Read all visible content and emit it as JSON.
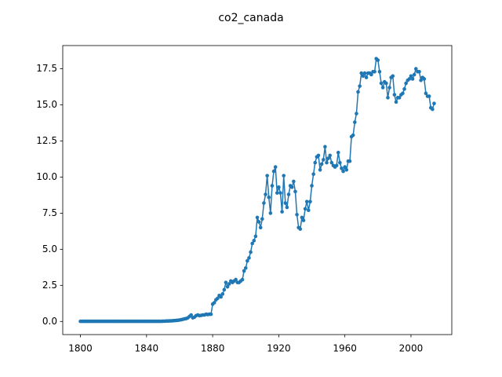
{
  "chart_data": {
    "type": "line",
    "title": "co2_canada",
    "color": "#1f77b4",
    "markers": true,
    "grid": false,
    "x": [
      1800,
      1801,
      1802,
      1803,
      1804,
      1805,
      1806,
      1807,
      1808,
      1809,
      1810,
      1811,
      1812,
      1813,
      1814,
      1815,
      1816,
      1817,
      1818,
      1819,
      1820,
      1821,
      1822,
      1823,
      1824,
      1825,
      1826,
      1827,
      1828,
      1829,
      1830,
      1831,
      1832,
      1833,
      1834,
      1835,
      1836,
      1837,
      1838,
      1839,
      1840,
      1841,
      1842,
      1843,
      1844,
      1845,
      1846,
      1847,
      1848,
      1849,
      1850,
      1851,
      1852,
      1853,
      1854,
      1855,
      1856,
      1857,
      1858,
      1859,
      1860,
      1861,
      1862,
      1863,
      1864,
      1865,
      1866,
      1867,
      1868,
      1869,
      1870,
      1871,
      1872,
      1873,
      1874,
      1875,
      1876,
      1877,
      1878,
      1879,
      1880,
      1881,
      1882,
      1883,
      1884,
      1885,
      1886,
      1887,
      1888,
      1889,
      1890,
      1891,
      1892,
      1893,
      1894,
      1895,
      1896,
      1897,
      1898,
      1899,
      1900,
      1901,
      1902,
      1903,
      1904,
      1905,
      1906,
      1907,
      1908,
      1909,
      1910,
      1911,
      1912,
      1913,
      1914,
      1915,
      1916,
      1917,
      1918,
      1919,
      1920,
      1921,
      1922,
      1923,
      1924,
      1925,
      1926,
      1927,
      1928,
      1929,
      1930,
      1931,
      1932,
      1933,
      1934,
      1935,
      1936,
      1937,
      1938,
      1939,
      1940,
      1941,
      1942,
      1943,
      1944,
      1945,
      1946,
      1947,
      1948,
      1949,
      1950,
      1951,
      1952,
      1953,
      1954,
      1955,
      1956,
      1957,
      1958,
      1959,
      1960,
      1961,
      1962,
      1963,
      1964,
      1965,
      1966,
      1967,
      1968,
      1969,
      1970,
      1971,
      1972,
      1973,
      1974,
      1975,
      1976,
      1977,
      1978,
      1979,
      1980,
      1981,
      1982,
      1983,
      1984,
      1985,
      1986,
      1987,
      1988,
      1989,
      1990,
      1991,
      1992,
      1993,
      1994,
      1995,
      1996,
      1997,
      1998,
      1999,
      2000,
      2001,
      2002,
      2003,
      2004,
      2005,
      2006,
      2007,
      2008,
      2009,
      2010,
      2011,
      2012,
      2013,
      2014
    ],
    "values": [
      0.01,
      0.01,
      0.01,
      0.01,
      0.01,
      0.01,
      0.01,
      0.01,
      0.01,
      0.01,
      0.01,
      0.01,
      0.01,
      0.01,
      0.01,
      0.01,
      0.01,
      0.01,
      0.01,
      0.01,
      0.01,
      0.01,
      0.01,
      0.01,
      0.01,
      0.01,
      0.01,
      0.01,
      0.01,
      0.01,
      0.01,
      0.01,
      0.01,
      0.01,
      0.01,
      0.01,
      0.01,
      0.01,
      0.01,
      0.01,
      0.01,
      0.01,
      0.01,
      0.01,
      0.01,
      0.01,
      0.01,
      0.01,
      0.01,
      0.01,
      0.02,
      0.02,
      0.03,
      0.03,
      0.04,
      0.04,
      0.05,
      0.06,
      0.07,
      0.08,
      0.1,
      0.12,
      0.15,
      0.18,
      0.2,
      0.25,
      0.35,
      0.45,
      0.25,
      0.3,
      0.4,
      0.45,
      0.4,
      0.42,
      0.45,
      0.45,
      0.5,
      0.48,
      0.5,
      0.5,
      1.2,
      1.3,
      1.5,
      1.6,
      1.8,
      1.7,
      1.9,
      2.2,
      2.7,
      2.4,
      2.6,
      2.8,
      2.7,
      2.8,
      2.9,
      2.7,
      2.7,
      2.8,
      2.9,
      3.5,
      3.7,
      4.2,
      4.4,
      4.8,
      5.4,
      5.6,
      5.9,
      7.2,
      6.9,
      6.5,
      7.1,
      8.2,
      8.8,
      10.1,
      8.6,
      7.5,
      9.4,
      10.4,
      10.7,
      8.9,
      9.3,
      8.9,
      7.6,
      10.1,
      8.2,
      7.9,
      8.8,
      9.4,
      9.3,
      9.7,
      9.0,
      7.4,
      6.5,
      6.4,
      7.2,
      7.0,
      7.8,
      8.3,
      7.7,
      8.3,
      9.4,
      10.2,
      11.0,
      11.4,
      11.5,
      10.5,
      10.9,
      11.2,
      12.1,
      11.0,
      11.3,
      11.5,
      11.0,
      10.8,
      10.7,
      10.8,
      11.7,
      11.0,
      10.6,
      10.4,
      10.7,
      10.5,
      11.1,
      11.1,
      12.8,
      12.9,
      13.8,
      14.4,
      15.9,
      16.3,
      17.2,
      17.0,
      17.2,
      16.9,
      17.2,
      17.2,
      17.1,
      17.3,
      17.3,
      18.2,
      18.1,
      17.3,
      16.5,
      16.2,
      16.6,
      16.5,
      15.5,
      16.2,
      16.9,
      17.0,
      15.7,
      15.2,
      15.5,
      15.5,
      15.7,
      15.8,
      16.1,
      16.5,
      16.7,
      16.8,
      17.0,
      16.8,
      17.1,
      17.5,
      17.3,
      17.3,
      16.7,
      16.9,
      16.8,
      15.8,
      15.6,
      15.6,
      14.8,
      14.7,
      15.1
    ],
    "xlim": [
      1789.3,
      2024.7
    ],
    "xticks": [
      1800,
      1840,
      1880,
      1920,
      1960,
      2000
    ],
    "ylim": [
      -0.91,
      19.11
    ],
    "yticks": [
      {
        "value": 0,
        "label": "0.0"
      },
      2.5,
      {
        "value": 5,
        "label": "5.0"
      },
      7.5,
      {
        "value": 10,
        "label": "10.0"
      },
      12.5,
      {
        "value": 15,
        "label": "15.0"
      },
      17.5
    ]
  }
}
